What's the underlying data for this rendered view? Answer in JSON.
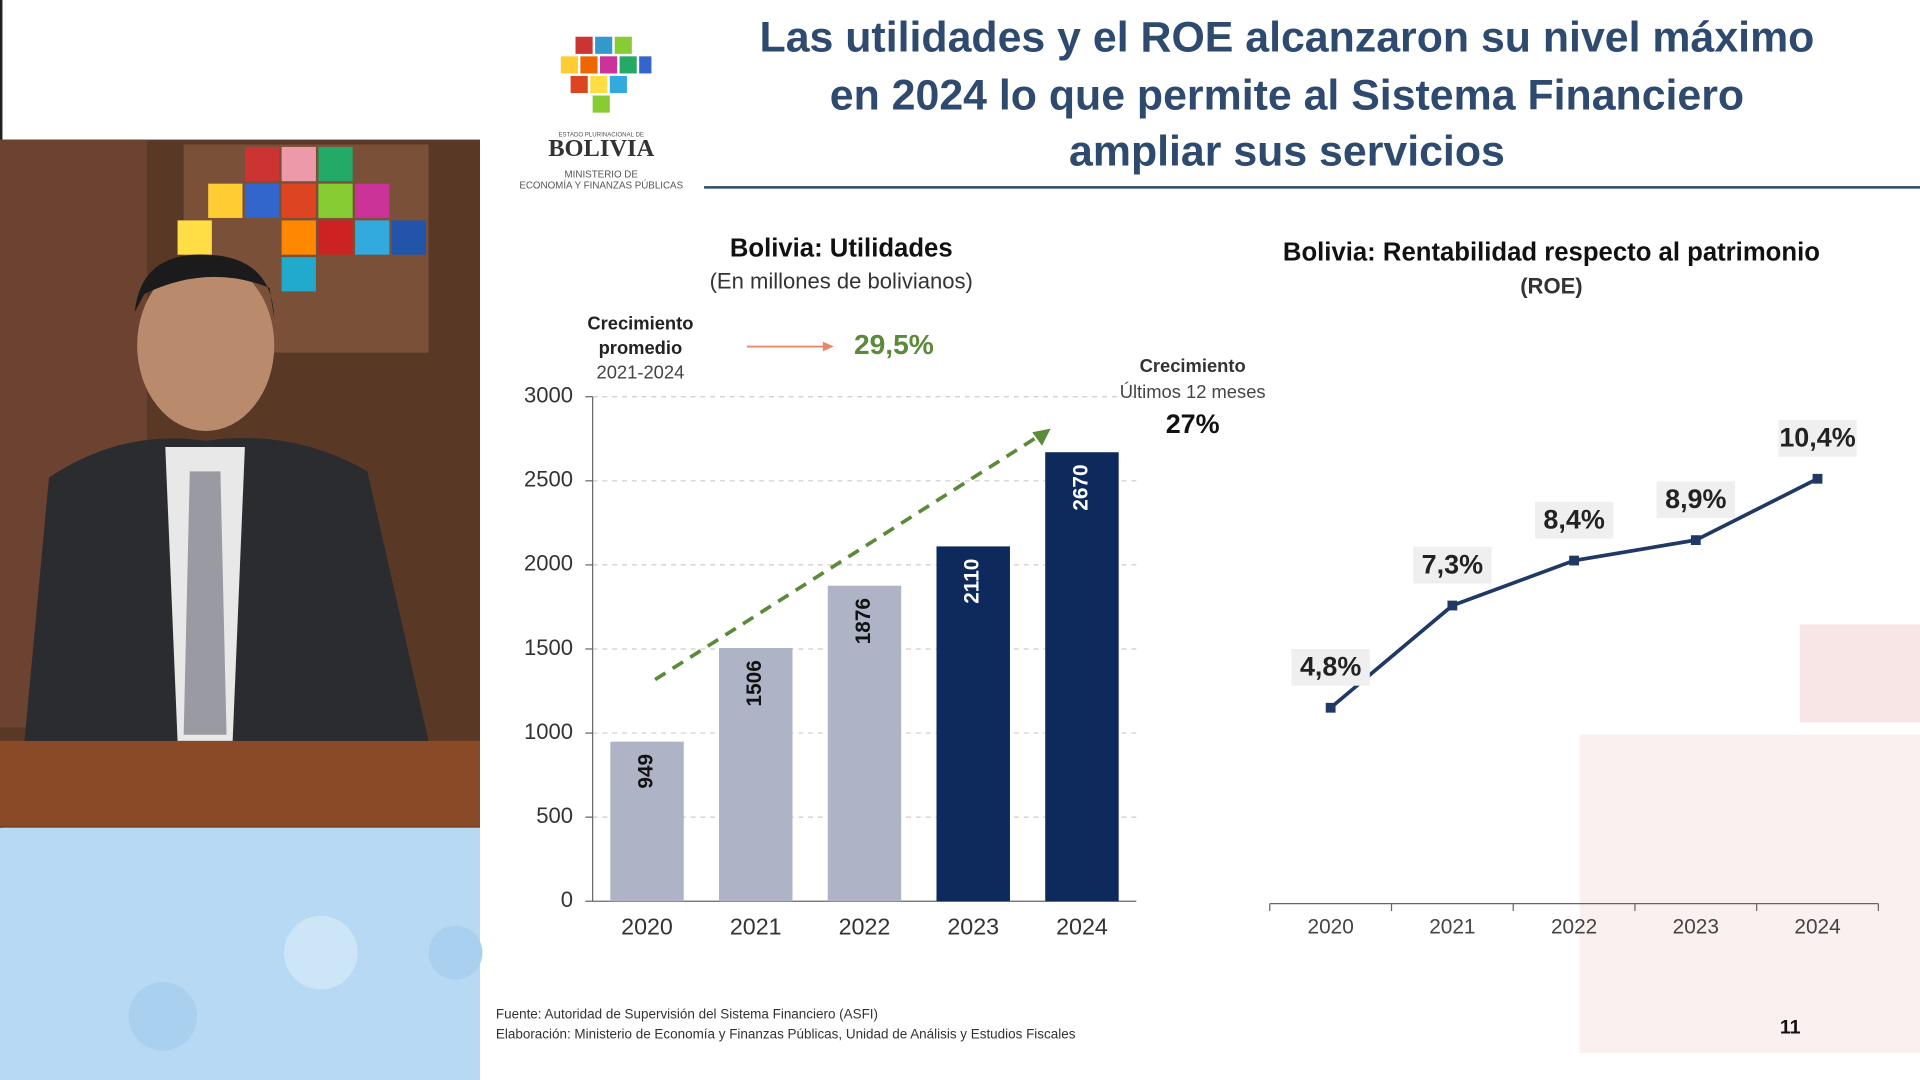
{
  "slide": {
    "title_lines": [
      "Las utilidades y el ROE alcanzaron su nivel máximo",
      "en 2024 lo que permite al Sistema Financiero",
      "ampliar sus servicios"
    ],
    "logo_top": "ESTADO PLURINACIONAL DE",
    "logo_name": "BOLIVIA",
    "logo_ministry": "MINISTERIO DE",
    "logo_ministry_2": "ECONOMÍA Y FINANZAS PÚBLICAS",
    "source": "Fuente: Autoridad de Supervisión del Sistema Financiero (ASFI)",
    "elaboration": "Elaboración: Ministerio de Economía y Finanzas Públicas, Unidad de Análisis y Estudios Fiscales",
    "page_number": "11"
  },
  "chart_data": [
    {
      "type": "bar",
      "title": "Bolivia: Utilidades",
      "subtitle": "(En millones de bolivianos)",
      "categories": [
        "2020",
        "2021",
        "2022",
        "2023",
        "2024"
      ],
      "values": [
        949,
        1506,
        1876,
        2110,
        2670
      ],
      "colors": [
        "#aeb4c6",
        "#aeb4c6",
        "#aeb4c6",
        "#0e2a5c",
        "#0e2a5c"
      ],
      "ylim": [
        0,
        3000
      ],
      "yticks": [
        0,
        500,
        1000,
        1500,
        2000,
        2500,
        3000
      ],
      "grid": true,
      "annotations": [
        "Crecimiento",
        "promedio",
        "2021-2024",
        "29,5%",
        "Crecimiento",
        "Últimos 12 meses",
        "27%"
      ]
    },
    {
      "type": "line",
      "title": "Bolivia: Rentabilidad respecto al patrimonio",
      "subtitle": "(ROE)",
      "categories": [
        "2020",
        "2021",
        "2022",
        "2023",
        "2024"
      ],
      "values": [
        4.8,
        7.3,
        8.4,
        8.9,
        10.4
      ],
      "value_labels": [
        "4,8%",
        "7,3%",
        "8,4%",
        "8,9%",
        "10,4%"
      ],
      "color": "#1f3864"
    }
  ]
}
